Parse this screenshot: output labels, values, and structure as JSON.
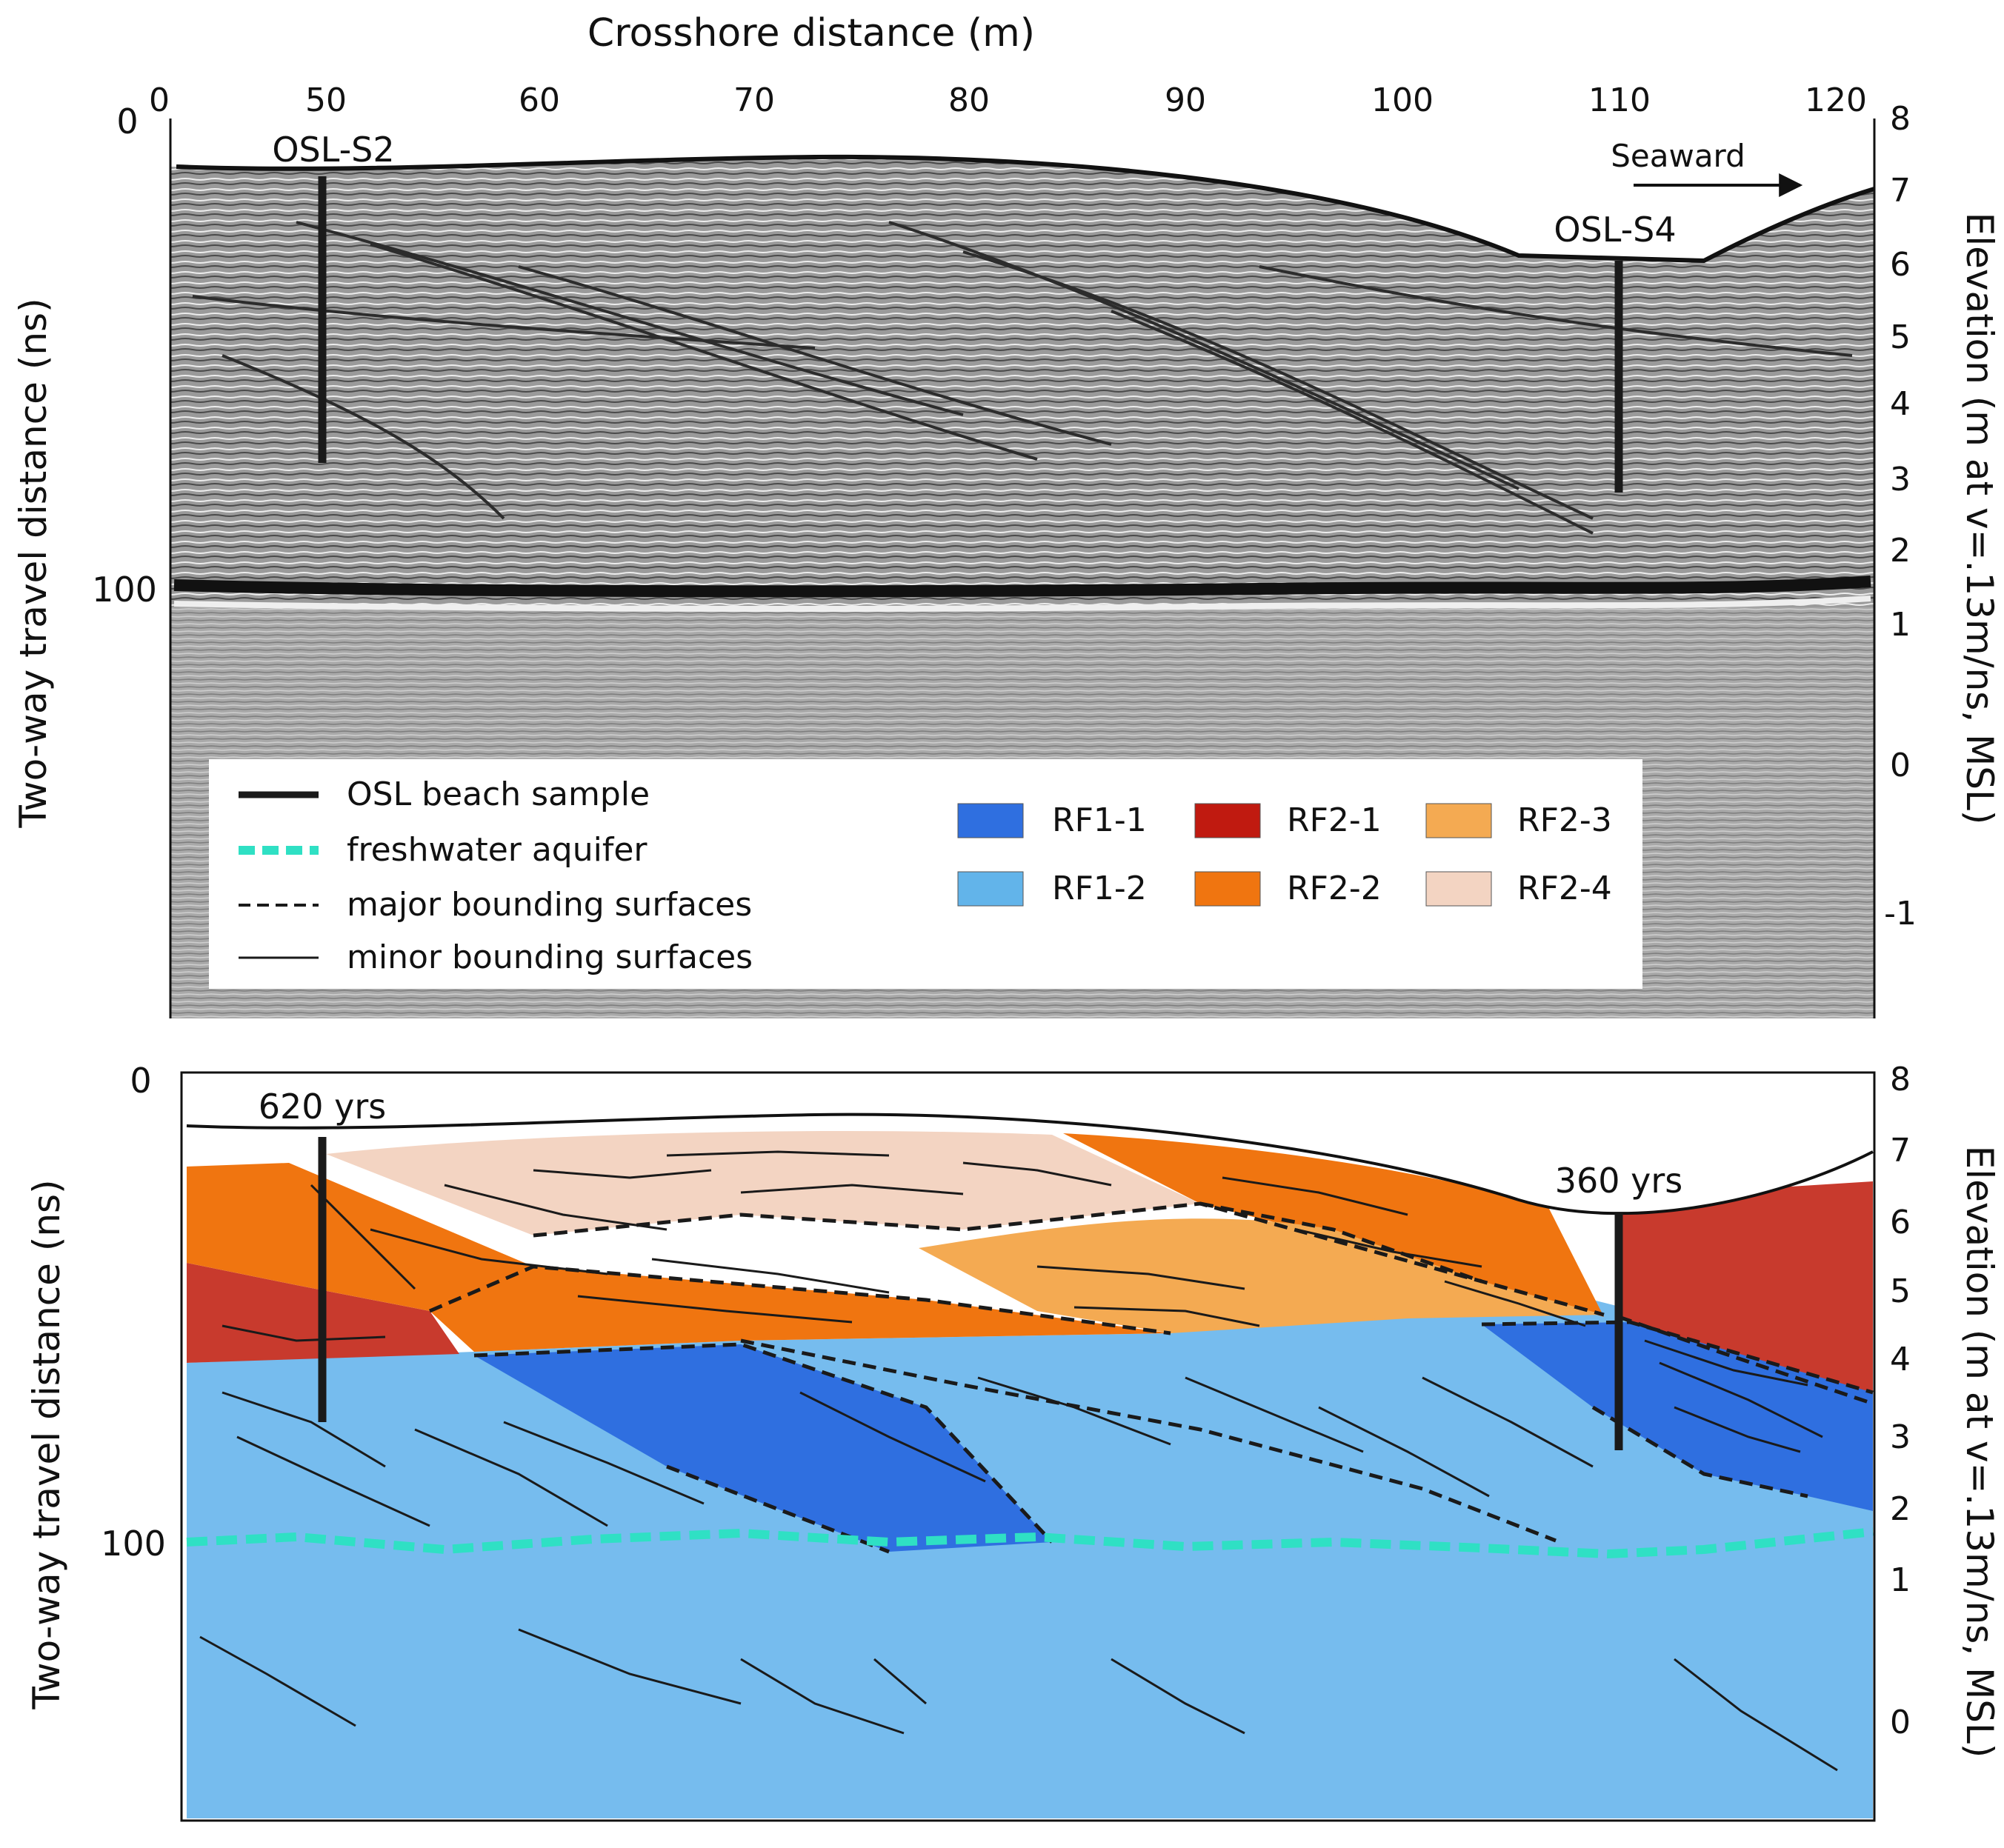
{
  "x_axis": {
    "title": "Crosshore distance (m)",
    "ticks": [
      "0",
      "50",
      "60",
      "70",
      "80",
      "90",
      "100",
      "110",
      "120"
    ]
  },
  "top_panel": {
    "left_axis_title": "Two-way travel distance (ns)",
    "left_ticks": [
      "0",
      "100"
    ],
    "right_axis_title": "Elevation (m at v=.13m/ns, MSL)",
    "right_ticks": [
      "8",
      "7",
      "6",
      "5",
      "4",
      "3",
      "2",
      "1",
      "0",
      "-1"
    ],
    "sample_labels": [
      "OSL-S2",
      "OSL-S4"
    ],
    "direction_label": "Seaward"
  },
  "legend": {
    "line_items": [
      {
        "label": "OSL beach sample",
        "color": "#1a1a1a"
      },
      {
        "label": "freshwater aquifer",
        "color": "#2fe0c4"
      },
      {
        "label": "major bounding surfaces",
        "color": "#1a1a1a"
      },
      {
        "label": "minor bounding surfaces",
        "color": "#1a1a1a"
      }
    ],
    "units": [
      {
        "label": "RF1-1",
        "color": "#2f6fe0"
      },
      {
        "label": "RF2-1",
        "color": "#c01a10"
      },
      {
        "label": "RF2-3",
        "color": "#f4aa52"
      },
      {
        "label": "RF1-2",
        "color": "#62b4ea"
      },
      {
        "label": "RF2-2",
        "color": "#f07510"
      },
      {
        "label": "RF2-4",
        "color": "#f3d4c2"
      }
    ]
  },
  "bottom_panel": {
    "left_axis_title": "Two-way travel distance (ns)",
    "left_ticks": [
      "0",
      "100"
    ],
    "right_axis_title": "Elevation (m at v=.13m/ns, MSL)",
    "right_ticks": [
      "8",
      "7",
      "6",
      "5",
      "4",
      "3",
      "2",
      "1",
      "0"
    ],
    "age_labels": [
      "620 yrs",
      "360 yrs"
    ]
  }
}
